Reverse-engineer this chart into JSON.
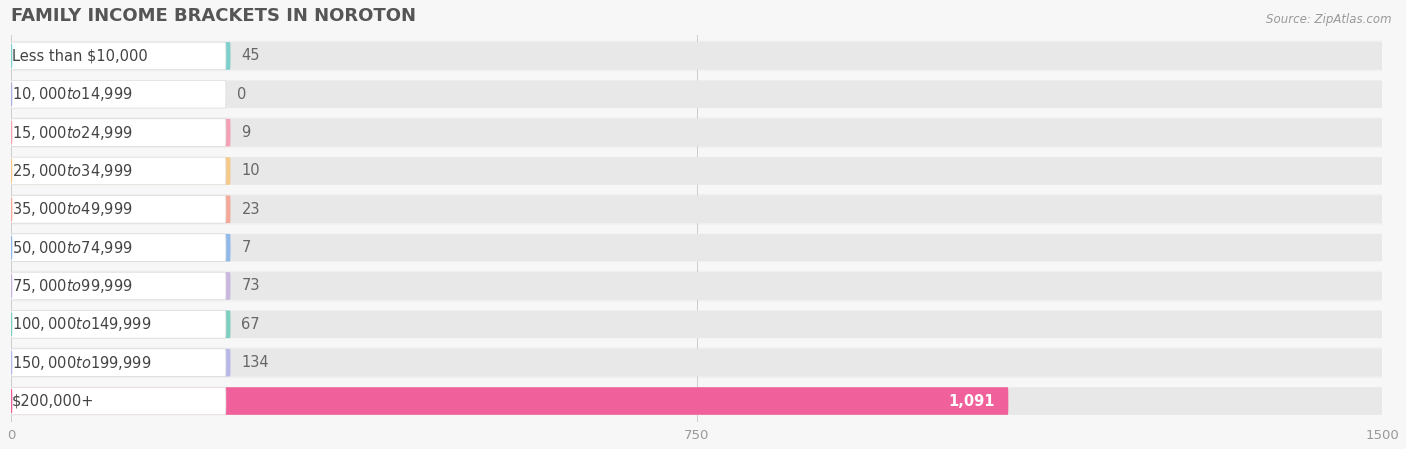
{
  "title": "Family Income Brackets in Noroton",
  "title_display": "FAMILY INCOME BRACKETS IN NOROTON",
  "source": "Source: ZipAtlas.com",
  "categories": [
    "Less than $10,000",
    "$10,000 to $14,999",
    "$15,000 to $24,999",
    "$25,000 to $34,999",
    "$35,000 to $49,999",
    "$50,000 to $74,999",
    "$75,000 to $99,999",
    "$100,000 to $149,999",
    "$150,000 to $199,999",
    "$200,000+"
  ],
  "values": [
    45,
    0,
    9,
    10,
    23,
    7,
    73,
    67,
    134,
    1091
  ],
  "bar_colors": [
    "#7dd0cc",
    "#b0b0e0",
    "#f4a0b5",
    "#f5c98a",
    "#f4a898",
    "#90b8e8",
    "#c8b8e0",
    "#7dd0c0",
    "#b8b8e8",
    "#f0609a"
  ],
  "xlim": [
    0,
    1500
  ],
  "xticks": [
    0,
    750,
    1500
  ],
  "background_color": "#f7f7f7",
  "bar_bg_color": "#e8e8e8",
  "row_bg_color": "#f0f0f0",
  "white_pill_color": "#ffffff",
  "title_fontsize": 13,
  "label_fontsize": 10.5,
  "value_fontsize": 10.5,
  "source_fontsize": 8.5
}
